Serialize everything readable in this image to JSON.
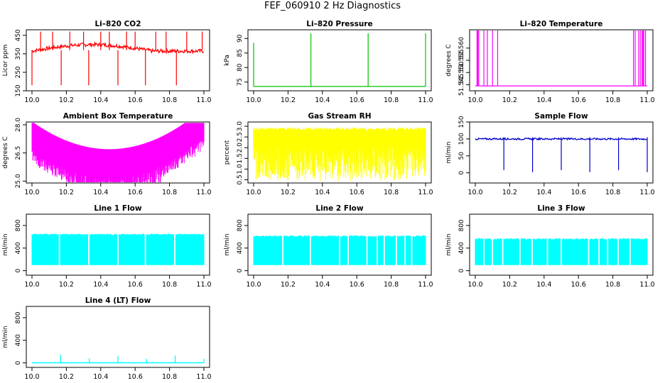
{
  "page": {
    "title": "FEF_060910  2 Hz Diagnostics"
  },
  "chart_data": [
    {
      "title": "Li–820 CO2",
      "type": "line",
      "ylabel": "Licor ppm",
      "color": "#ff0000",
      "xlim": [
        10.0,
        11.0
      ],
      "xticks": [
        "10.0",
        "10.2",
        "10.4",
        "10.6",
        "10.8",
        "11.0"
      ],
      "ylim": [
        150,
        480
      ],
      "yticks": [
        "150",
        "250",
        "350",
        "450"
      ],
      "ytick_values": [
        150,
        250,
        350,
        450
      ],
      "series": [
        {
          "name": "CO2",
          "kind": "co2",
          "base": 365
        }
      ]
    },
    {
      "title": "Li–820 Pressure",
      "type": "line",
      "ylabel": "kPa",
      "color": "#00c000",
      "xlim": [
        10.0,
        11.0
      ],
      "xticks": [
        "10.0",
        "10.2",
        "10.4",
        "10.6",
        "10.8",
        "11.0"
      ],
      "ylim": [
        72,
        93
      ],
      "yticks": [
        "75",
        "80",
        "85",
        "90"
      ],
      "ytick_values": [
        75,
        80,
        85,
        90
      ],
      "series": [
        {
          "name": "Pressure",
          "kind": "pressure",
          "base": 73.5
        }
      ]
    },
    {
      "title": "Li–820 Temperature",
      "type": "line",
      "ylabel": "degrees C",
      "color": "#ff00ff",
      "xlim": [
        10.0,
        11.0
      ],
      "xticks": [
        "10.0",
        "10.2",
        "10.4",
        "10.6",
        "10.8",
        "11.0"
      ],
      "ylim": [
        51.5425,
        51.5675
      ],
      "yticks": [
        "51.545",
        "51.550",
        "51.555",
        "51.560"
      ],
      "ytick_values": [
        51.545,
        51.55,
        51.555,
        51.56
      ],
      "series": [
        {
          "name": "Temperature",
          "kind": "temp",
          "base": 51.5445
        }
      ]
    },
    {
      "title": "Ambient Box Temperature",
      "type": "line",
      "ylabel": "degrees C",
      "color": "#ff00ff",
      "xlim": [
        10.0,
        11.0
      ],
      "xticks": [
        "10.0",
        "10.2",
        "10.4",
        "10.6",
        "10.8",
        "11.0"
      ],
      "ylim": [
        24.9,
        28.15
      ],
      "yticks": [
        "25.0",
        "26.5",
        "28.0"
      ],
      "ytick_values": [
        25.0,
        26.5,
        28.0
      ],
      "series": [
        {
          "name": "Ambient",
          "kind": "ambient",
          "base": 27.0
        }
      ]
    },
    {
      "title": "Gas Stream RH",
      "type": "line",
      "ylabel": "percent",
      "color": "#ffff00",
      "xlim": [
        10.0,
        11.0
      ],
      "xticks": [
        "10.0",
        "10.2",
        "10.4",
        "10.6",
        "10.8",
        "11.0"
      ],
      "ylim": [
        0.35,
        3.2
      ],
      "yticks": [
        "0.5",
        "1.0",
        "1.5",
        "2.0",
        "2.5",
        "3.0"
      ],
      "ytick_values": [
        0.5,
        1.0,
        1.5,
        2.0,
        2.5,
        3.0
      ],
      "series": [
        {
          "name": "RH",
          "kind": "rh",
          "base": 2.9
        }
      ]
    },
    {
      "title": "Sample Flow",
      "type": "line",
      "ylabel": "ml/min",
      "color": "#0000cc",
      "xlim": [
        10.0,
        11.0
      ],
      "xticks": [
        "10.0",
        "10.2",
        "10.4",
        "10.6",
        "10.8",
        "11.0"
      ],
      "ylim": [
        -30,
        150
      ],
      "yticks": [
        "0",
        "50",
        "100",
        "150"
      ],
      "ytick_values": [
        0,
        50,
        100,
        150
      ],
      "series": [
        {
          "name": "Sample",
          "kind": "sample",
          "base": 100
        }
      ]
    },
    {
      "title": "Line 1 Flow",
      "type": "line",
      "ylabel": "ml/min",
      "color": "#00ffff",
      "xlim": [
        10.0,
        11.0
      ],
      "xticks": [
        "10.0",
        "10.2",
        "10.4",
        "10.6",
        "10.8",
        "11.0"
      ],
      "ylim": [
        -80,
        1000
      ],
      "yticks": [
        "0",
        "400",
        "800"
      ],
      "ytick_values": [
        0,
        400,
        800
      ],
      "series": [
        {
          "name": "Line 1",
          "kind": "line",
          "base": 640,
          "low": 100,
          "gaps": [
            10.16,
            10.33,
            10.5,
            10.66,
            10.83
          ]
        }
      ]
    },
    {
      "title": "Line 2 Flow",
      "type": "line",
      "ylabel": "ml/min",
      "color": "#00ffff",
      "xlim": [
        10.0,
        11.0
      ],
      "xticks": [
        "10.0",
        "10.2",
        "10.4",
        "10.6",
        "10.8",
        "11.0"
      ],
      "ylim": [
        -80,
        1000
      ],
      "yticks": [
        "0",
        "400",
        "800"
      ],
      "ytick_values": [
        0,
        400,
        800
      ],
      "series": [
        {
          "name": "Line 2",
          "kind": "line",
          "base": 610,
          "low": 100,
          "gaps": [
            10.17,
            10.33,
            10.5,
            10.55,
            10.66,
            10.72,
            10.76,
            10.83,
            10.88,
            10.92
          ]
        }
      ]
    },
    {
      "title": "Line 3 Flow",
      "type": "line",
      "ylabel": "ml/min",
      "color": "#00ffff",
      "xlim": [
        10.0,
        11.0
      ],
      "xticks": [
        "10.0",
        "10.2",
        "10.4",
        "10.6",
        "10.8",
        "11.0"
      ],
      "ylim": [
        -80,
        1000
      ],
      "yticks": [
        "0",
        "400",
        "800"
      ],
      "ytick_values": [
        0,
        400,
        800
      ],
      "series": [
        {
          "name": "Line 3",
          "kind": "line",
          "base": 560,
          "low": 100,
          "gaps": [
            10.05,
            10.1,
            10.16,
            10.26,
            10.33,
            10.42,
            10.5,
            10.66,
            10.72,
            10.77,
            10.83,
            10.9
          ]
        }
      ]
    },
    {
      "title": "Line 4 (LT) Flow",
      "type": "line",
      "ylabel": "ml/min",
      "color": "#00ffff",
      "xlim": [
        10.0,
        11.0
      ],
      "xticks": [
        "10.0",
        "10.2",
        "10.4",
        "10.6",
        "10.8",
        "11.0"
      ],
      "ylim": [
        -80,
        1000
      ],
      "yticks": [
        "0",
        "400",
        "800"
      ],
      "ytick_values": [
        0,
        400,
        800
      ],
      "series": [
        {
          "name": "Line 4",
          "kind": "spikes",
          "base": 2,
          "spikes": [
            [
              10.166,
              150
            ],
            [
              10.333,
              80
            ],
            [
              10.5,
              120
            ],
            [
              10.666,
              70
            ],
            [
              10.833,
              130
            ],
            [
              11.0,
              70
            ]
          ]
        }
      ]
    }
  ]
}
